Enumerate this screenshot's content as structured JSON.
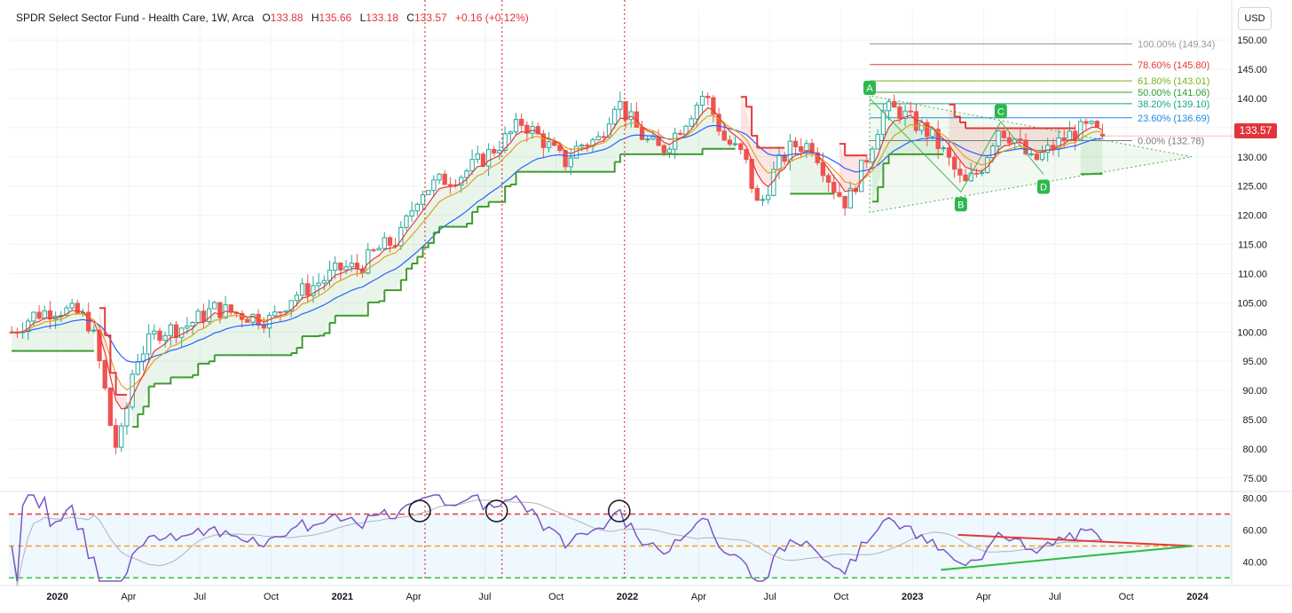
{
  "header": {
    "title": "SPDR Select Sector Fund - Health Care, 1W, Arca",
    "open_label": "O",
    "open": "133.88",
    "high_label": "H",
    "high": "135.66",
    "low_label": "L",
    "low": "133.18",
    "close_label": "C",
    "close": "133.57",
    "change": "+0.16 (+0.12%)"
  },
  "currency_button": "USD",
  "last_price": "133.57",
  "colors": {
    "up": "#26a69a",
    "down": "#ef5350",
    "ema_fast": "#e53935",
    "ema_mid": "#e0a020",
    "ema_slow": "#2962ff",
    "stop_up": "#3d9a2e",
    "stop_down": "#e53935",
    "rsi": "#7e57c2",
    "rsi_ma": "#b0b4bc"
  },
  "chart_data": {
    "type": "line",
    "price_axis": {
      "ticks": [
        "75.00",
        "80.00",
        "85.00",
        "90.00",
        "95.00",
        "100.00",
        "105.00",
        "110.00",
        "115.00",
        "120.00",
        "125.00",
        "130.00",
        "135.00",
        "140.00",
        "145.00",
        "150.00"
      ],
      "ylim": [
        73,
        152
      ]
    },
    "time_axis": {
      "labels": [
        {
          "t": 2020.0,
          "text": "2020",
          "bold": true
        },
        {
          "t": 2020.25,
          "text": "Apr"
        },
        {
          "t": 2020.5,
          "text": "Jul"
        },
        {
          "t": 2020.75,
          "text": "Oct"
        },
        {
          "t": 2021.0,
          "text": "2021",
          "bold": true
        },
        {
          "t": 2021.25,
          "text": "Apr"
        },
        {
          "t": 2021.5,
          "text": "Jul"
        },
        {
          "t": 2021.75,
          "text": "Oct"
        },
        {
          "t": 2022.0,
          "text": "2022",
          "bold": true
        },
        {
          "t": 2022.25,
          "text": "Apr"
        },
        {
          "t": 2022.5,
          "text": "Jul"
        },
        {
          "t": 2022.75,
          "text": "Oct"
        },
        {
          "t": 2023.0,
          "text": "2023",
          "bold": true
        },
        {
          "t": 2023.25,
          "text": "Apr"
        },
        {
          "t": 2023.5,
          "text": "Jul"
        },
        {
          "t": 2023.75,
          "text": "Oct"
        },
        {
          "t": 2024.0,
          "text": "2024",
          "bold": true
        }
      ],
      "xlim": [
        2019.83,
        2024.12
      ]
    },
    "price_path": [
      [
        2019.84,
        100
      ],
      [
        2019.92,
        103
      ],
      [
        2020.0,
        104
      ],
      [
        2020.08,
        103
      ],
      [
        2020.12,
        101
      ],
      [
        2020.16,
        92
      ],
      [
        2020.2,
        80
      ],
      [
        2020.23,
        83
      ],
      [
        2020.27,
        95
      ],
      [
        2020.35,
        100
      ],
      [
        2020.45,
        101
      ],
      [
        2020.55,
        104
      ],
      [
        2020.65,
        103
      ],
      [
        2020.75,
        102
      ],
      [
        2020.82,
        106
      ],
      [
        2020.9,
        108
      ],
      [
        2021.0,
        111
      ],
      [
        2021.06,
        111
      ],
      [
        2021.12,
        114
      ],
      [
        2021.2,
        116
      ],
      [
        2021.27,
        124
      ],
      [
        2021.35,
        126
      ],
      [
        2021.42,
        127
      ],
      [
        2021.5,
        130
      ],
      [
        2021.57,
        133
      ],
      [
        2021.63,
        136
      ],
      [
        2021.7,
        133
      ],
      [
        2021.78,
        129
      ],
      [
        2021.83,
        132
      ],
      [
        2021.9,
        133
      ],
      [
        2021.96,
        140
      ],
      [
        2022.0,
        137
      ],
      [
        2022.06,
        133
      ],
      [
        2022.12,
        131
      ],
      [
        2022.2,
        136
      ],
      [
        2022.27,
        141
      ],
      [
        2022.34,
        133
      ],
      [
        2022.41,
        130
      ],
      [
        2022.46,
        121
      ],
      [
        2022.52,
        128
      ],
      [
        2022.58,
        132
      ],
      [
        2022.65,
        132
      ],
      [
        2022.72,
        125
      ],
      [
        2022.77,
        122
      ],
      [
        2022.84,
        130
      ],
      [
        2022.9,
        138
      ],
      [
        2022.95,
        138
      ],
      [
        2023.0,
        136
      ],
      [
        2023.06,
        134
      ],
      [
        2023.12,
        130
      ],
      [
        2023.18,
        125
      ],
      [
        2023.24,
        128
      ],
      [
        2023.3,
        135
      ],
      [
        2023.36,
        133
      ],
      [
        2023.42,
        129
      ],
      [
        2023.5,
        132
      ],
      [
        2023.56,
        134
      ],
      [
        2023.62,
        135
      ],
      [
        2023.67,
        133.57
      ]
    ],
    "vertical_markers": [
      2021.29,
      2021.56,
      2021.99
    ],
    "fibonacci": {
      "t_start": 2022.85,
      "t_end": 2023.88,
      "levels": [
        {
          "pct": "100.00%",
          "price": 149.34,
          "label": "100.00% (149.34)",
          "color": "#9598a1"
        },
        {
          "pct": "78.60%",
          "price": 145.8,
          "label": "78.60% (145.80)",
          "color": "#e53935"
        },
        {
          "pct": "61.80%",
          "price": 143.01,
          "label": "61.80% (143.01)",
          "color": "#7cb518"
        },
        {
          "pct": "50.00%",
          "price": 141.06,
          "label": "50.00% (141.06)",
          "color": "#2e9e32"
        },
        {
          "pct": "38.20%",
          "price": 139.1,
          "label": "38.20% (139.10)",
          "color": "#17a589"
        },
        {
          "pct": "23.60%",
          "price": 136.69,
          "label": "23.60% (136.69)",
          "color": "#1e88e5"
        },
        {
          "pct": "0.00%",
          "price": 132.78,
          "label": "0.00% (132.78)",
          "color": "#787b86"
        }
      ]
    },
    "abcd_pattern": [
      {
        "label": "A",
        "t": 2022.85,
        "price": 140.0
      },
      {
        "label": "B",
        "t": 2023.17,
        "price": 124.0
      },
      {
        "label": "C",
        "t": 2023.31,
        "price": 136.0
      },
      {
        "label": "D",
        "t": 2023.46,
        "price": 127.0
      }
    ],
    "triangle": [
      [
        2022.85,
        140.5
      ],
      [
        2022.85,
        120.5
      ],
      [
        2023.98,
        130.0
      ]
    ],
    "rsi": {
      "ticks": [
        "40.00",
        "60.00",
        "80.00"
      ],
      "ylim": [
        28,
        82
      ],
      "overbought": 70,
      "midline": 50,
      "oversold": 30,
      "circled_peaks": [
        2021.29,
        2021.56,
        2021.99
      ],
      "resistance_line": [
        [
          2023.16,
          57
        ],
        [
          2023.98,
          50
        ]
      ],
      "support_line": [
        [
          2023.1,
          35
        ],
        [
          2023.98,
          50
        ]
      ]
    }
  }
}
